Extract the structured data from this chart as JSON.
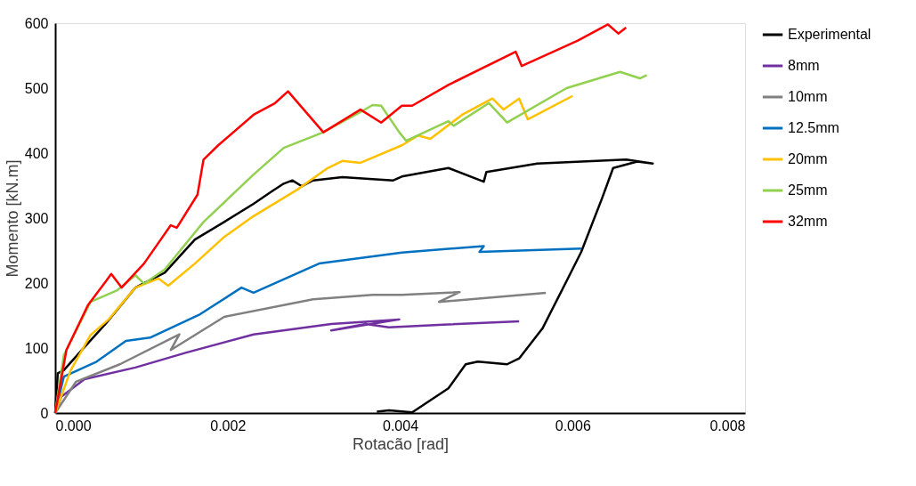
{
  "chart_data": {
    "type": "line",
    "xlabel": "Rotacão [rad]",
    "ylabel": "Momento [kN.m]",
    "xlim": [
      0,
      0.008
    ],
    "ylim": [
      0,
      600
    ],
    "xticks": [
      {
        "value": 0,
        "label": "0.000"
      },
      {
        "value": 0.002,
        "label": "0.002"
      },
      {
        "value": 0.004,
        "label": "0.004"
      },
      {
        "value": 0.006,
        "label": "0.006"
      },
      {
        "value": 0.008,
        "label": "0.008"
      }
    ],
    "yticks": [
      0,
      100,
      200,
      300,
      400,
      500,
      600
    ],
    "grid": false,
    "legend": "right",
    "marker": "none",
    "line_style": "solid",
    "series": [
      {
        "name": "Experimental",
        "color": "#000000",
        "x": [
          0,
          3e-05,
          0.0001,
          0.00031,
          0.00059,
          0.00093,
          0.00127,
          0.00162,
          0.00196,
          0.0023,
          0.0025,
          0.00265,
          0.00275,
          0.00286,
          0.00299,
          0.00333,
          0.00368,
          0.00392,
          0.00402,
          0.00456,
          0.00497,
          0.005,
          0.00559,
          0.00662,
          0.00693,
          0.00675,
          0.00647,
          0.00634,
          0.0061,
          0.00593,
          0.00565,
          0.00538,
          0.00524,
          0.0049,
          0.00476,
          0.00456,
          0.00414,
          0.00387,
          0.00373
        ],
        "values": [
          0,
          61,
          66,
          97,
          138,
          193,
          216,
          267,
          294,
          322,
          340,
          353,
          358,
          349,
          358,
          363,
          360,
          358,
          364,
          377,
          356,
          371,
          384,
          390,
          384,
          387,
          377,
          330,
          248,
          203,
          130,
          84,
          75,
          79,
          75,
          38,
          1,
          4,
          2
        ]
      },
      {
        "name": "8mm",
        "color": "#7030a0",
        "x": [
          0,
          7e-05,
          0.00034,
          0.00093,
          0.00152,
          0.0023,
          0.0032,
          0.00399,
          0.0032,
          0.0036,
          0.00387,
          0.0045,
          0.00538
        ],
        "values": [
          0,
          25,
          52,
          70,
          93,
          121,
          137,
          144,
          127,
          137,
          132,
          136,
          141
        ]
      },
      {
        "name": "10mm",
        "color": "#808080",
        "x": [
          0,
          0.00024,
          0.00075,
          0.00144,
          0.00134,
          0.00196,
          0.00299,
          0.00368,
          0.00402,
          0.00469,
          0.00445,
          0.00569
        ],
        "values": [
          0,
          48,
          75,
          121,
          97,
          148,
          175,
          182,
          182,
          186,
          171,
          185
        ]
      },
      {
        "name": "12.5mm",
        "color": "#0070c0",
        "x": [
          0,
          0.0001,
          0.00048,
          0.00082,
          0.0011,
          0.00168,
          0.00216,
          0.0023,
          0.00306,
          0.00402,
          0.00497,
          0.00492,
          0.0061
        ],
        "values": [
          0,
          56,
          79,
          111,
          116,
          152,
          193,
          185,
          230,
          247,
          257,
          248,
          253
        ]
      },
      {
        "name": "20mm",
        "color": "#ffc000",
        "x": [
          0,
          0.00018,
          0.00041,
          0.00062,
          0.00093,
          0.0012,
          0.00131,
          0.00162,
          0.00196,
          0.0023,
          0.00281,
          0.00316,
          0.00333,
          0.00354,
          0.00402,
          0.00421,
          0.00435,
          0.00472,
          0.00507,
          0.0052,
          0.00538,
          0.00548,
          0.006
        ],
        "values": [
          0,
          66,
          120,
          144,
          193,
          207,
          196,
          230,
          271,
          303,
          344,
          377,
          388,
          385,
          412,
          427,
          422,
          459,
          484,
          467,
          484,
          452,
          488
        ]
      },
      {
        "name": "25mm",
        "color": "#92d050",
        "x": [
          0,
          0.0001,
          0.00041,
          0.00072,
          0.00093,
          0.00103,
          0.00127,
          0.00172,
          0.0023,
          0.00265,
          0.00309,
          0.00354,
          0.00368,
          0.00378,
          0.00399,
          0.00407,
          0.00456,
          0.00462,
          0.00503,
          0.00524,
          0.00593,
          0.00655,
          0.00678,
          0.00686
        ],
        "values": [
          0,
          89,
          171,
          189,
          212,
          199,
          221,
          294,
          367,
          408,
          431,
          463,
          474,
          473,
          432,
          419,
          449,
          442,
          477,
          447,
          500,
          525,
          515,
          520
        ]
      },
      {
        "name": "32mm",
        "color": "#ff0000",
        "x": [
          0,
          0.00013,
          0.00038,
          0.00059,
          0.00065,
          0.00077,
          0.00103,
          0.00134,
          0.00141,
          0.00165,
          0.00172,
          0.00189,
          0.0023,
          0.00255,
          0.0027,
          0.00311,
          0.00354,
          0.00378,
          0.00402,
          0.00414,
          0.00456,
          0.00534,
          0.00541,
          0.00606,
          0.00641,
          0.00653,
          0.00662
        ],
        "values": [
          0,
          97,
          166,
          203,
          214,
          193,
          230,
          289,
          285,
          336,
          390,
          412,
          459,
          477,
          495,
          432,
          467,
          447,
          473,
          473,
          505,
          556,
          534,
          573,
          598,
          584,
          593
        ]
      }
    ]
  }
}
